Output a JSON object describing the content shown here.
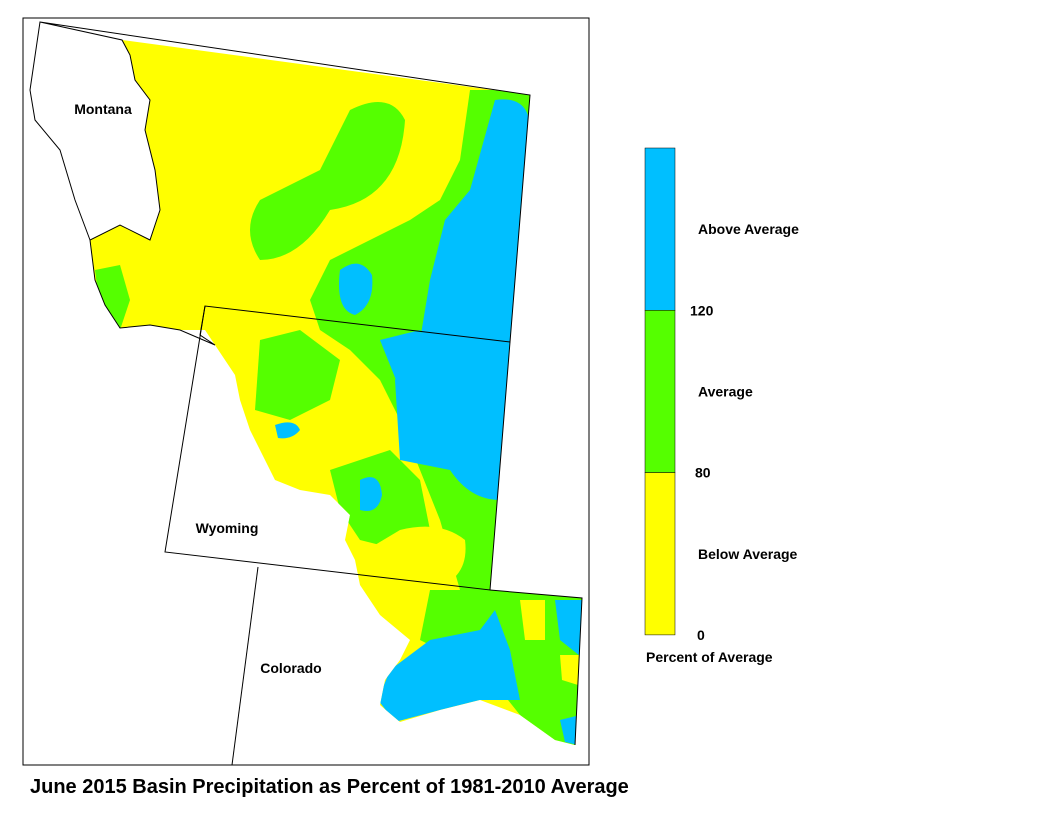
{
  "map": {
    "states": [
      "Montana",
      "Wyoming",
      "Colorado"
    ],
    "caption": "June 2015 Basin Precipitation as Percent of 1981-2010 Average"
  },
  "legend": {
    "title": "Percent of Average",
    "classes": [
      {
        "label": "Above Average",
        "color": "#00bfff"
      },
      {
        "label": "Average",
        "color": "#55ff00"
      },
      {
        "label": "Below Average",
        "color": "#ffff00"
      }
    ],
    "breaks": [
      120,
      80,
      0
    ]
  }
}
